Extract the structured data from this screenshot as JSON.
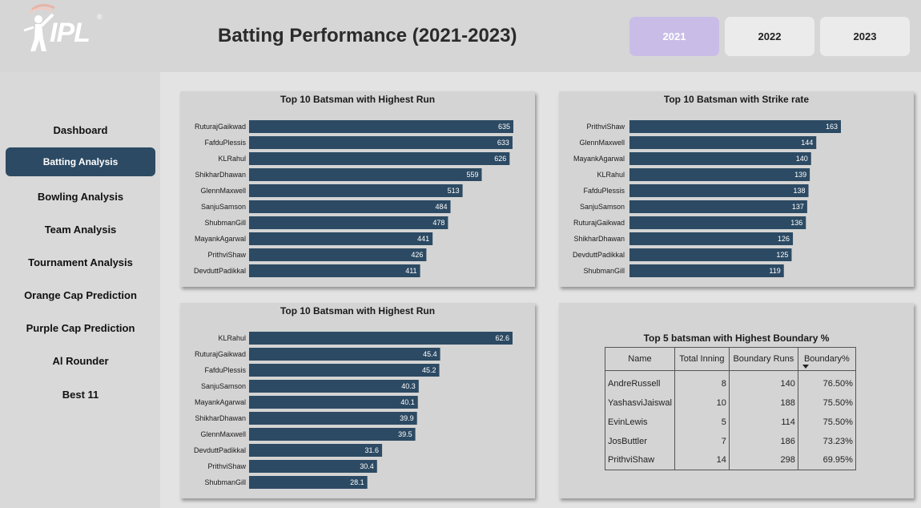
{
  "header": {
    "logo_text": "IPL",
    "logo_reg": "®",
    "title": "Batting Performance (2021-2023)",
    "years": [
      {
        "label": "2021",
        "active": true
      },
      {
        "label": "2022",
        "active": false
      },
      {
        "label": "2023",
        "active": false
      }
    ]
  },
  "sidebar": {
    "items": [
      {
        "label": "Dashboard",
        "active": false
      },
      {
        "label": "Batting Analysis",
        "active": true
      },
      {
        "label": "Bowling Analysis",
        "active": false
      },
      {
        "label": "Team Analysis",
        "active": false
      },
      {
        "label": "Tournament Analysis",
        "active": false
      },
      {
        "label": "Orange Cap Prediction",
        "active": false
      },
      {
        "label": "Purple Cap Prediction",
        "active": false
      },
      {
        "label": "Al Rounder",
        "active": false
      },
      {
        "label": "Best 11",
        "active": false
      }
    ]
  },
  "colors": {
    "bar": "#2c4a63",
    "active_year": "#c9bde8",
    "active_nav": "#2c4a63"
  },
  "chart_data": [
    {
      "type": "bar",
      "orientation": "horizontal",
      "title": "Top 10 Batsman with Highest Run",
      "categories": [
        "RuturajGaikwad",
        "FafduPlessis",
        "KLRahul",
        "ShikharDhawan",
        "GlennMaxwell",
        "SanjuSamson",
        "ShubmanGill",
        "MayankAgarwal",
        "PrithviShaw",
        "DevduttPadikkal"
      ],
      "values": [
        635,
        633,
        626,
        559,
        513,
        484,
        478,
        441,
        426,
        411
      ],
      "labels": [
        "635",
        "633",
        "626",
        "559",
        "513",
        "484",
        "478",
        "441",
        "426",
        "411"
      ],
      "xlim": [
        0,
        635
      ]
    },
    {
      "type": "bar",
      "orientation": "horizontal",
      "title": "Top 10 Batsman with Strike rate",
      "categories": [
        "PrithviShaw",
        "GlennMaxwell",
        "MayankAgarwal",
        "KLRahul",
        "FafduPlessis",
        "SanjuSamson",
        "RuturajGaikwad",
        "ShikharDhawan",
        "DevduttPadikkal",
        "ShubmanGill"
      ],
      "values": [
        163,
        144,
        140,
        139,
        138,
        137,
        136,
        126,
        125,
        119
      ],
      "labels": [
        "163",
        "144",
        "140",
        "139",
        "138",
        "137",
        "136",
        "126",
        "125",
        "119"
      ],
      "xlim": [
        0,
        163
      ]
    },
    {
      "type": "bar",
      "orientation": "horizontal",
      "title": "Top 10 Batsman with Highest Run",
      "categories": [
        "KLRahul",
        "RuturajGaikwad",
        "FafduPlessis",
        "SanjuSamson",
        "MayankAgarwal",
        "ShikharDhawan",
        "GlennMaxwell",
        "DevduttPadikkal",
        "PrithviShaw",
        "ShubmanGill"
      ],
      "values": [
        62.6,
        45.4,
        45.2,
        40.3,
        40.1,
        39.9,
        39.5,
        31.6,
        30.4,
        28.1
      ],
      "labels": [
        "62.6",
        "45.4",
        "45.2",
        "40.3",
        "40.1",
        "39.9",
        "39.5",
        "31.6",
        "30.4",
        "28.1"
      ],
      "xlim": [
        0,
        62.6
      ]
    },
    {
      "type": "table",
      "title": "Top 5 batsman with Highest Boundary %",
      "columns": [
        "Name",
        "Total Inning",
        "Boundary Runs",
        "Boundary%"
      ],
      "rows": [
        [
          "AndreRussell",
          "8",
          "140",
          "76.50%"
        ],
        [
          "YashasviJaiswal",
          "10",
          "188",
          "75.50%"
        ],
        [
          "EvinLewis",
          "5",
          "114",
          "75.50%"
        ],
        [
          "JosButtler",
          "7",
          "186",
          "73.23%"
        ],
        [
          "PrithviShaw",
          "14",
          "298",
          "69.95%"
        ]
      ]
    }
  ]
}
